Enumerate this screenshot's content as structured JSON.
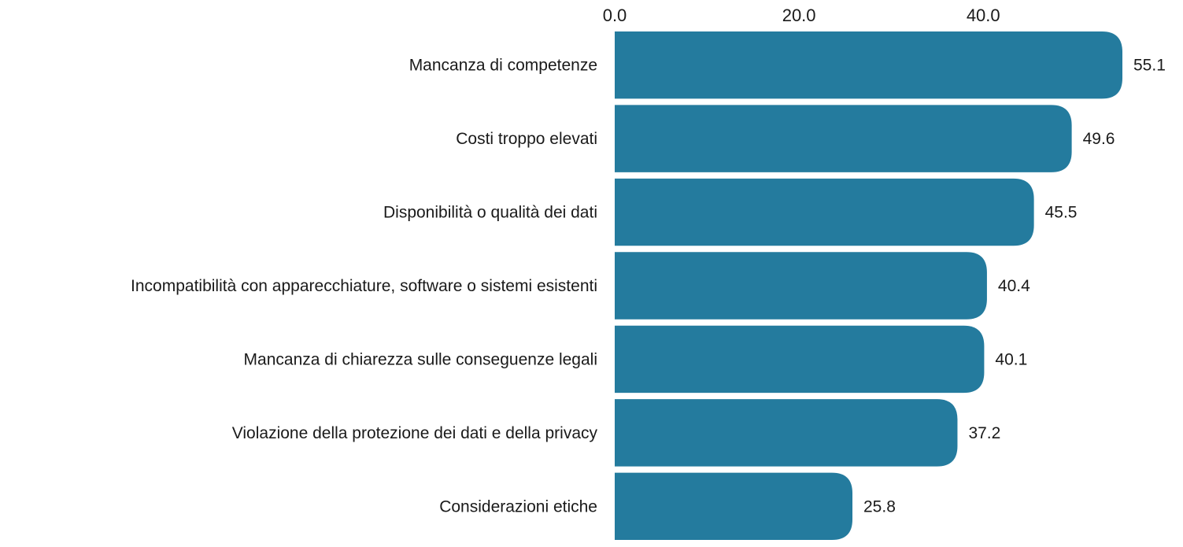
{
  "chart_data": {
    "type": "bar",
    "orientation": "horizontal",
    "categories": [
      "Mancanza di competenze",
      "Costi troppo elevati",
      "Disponibilità o qualità dei dati",
      "Incompatibilità con apparecchiature, software o sistemi esistenti",
      "Mancanza di chiarezza sulle conseguenze legali",
      "Violazione della protezione dei dati e della privacy",
      "Considerazioni etiche"
    ],
    "values": [
      55.1,
      49.6,
      45.5,
      40.4,
      40.1,
      37.2,
      25.8
    ],
    "value_labels": [
      "55.1",
      "49.6",
      "45.5",
      "40.4",
      "40.1",
      "37.2",
      "25.8"
    ],
    "x_ticks": [
      0,
      20,
      40
    ],
    "x_tick_labels": [
      "0.0",
      "20.0",
      "40.0"
    ],
    "xlim": [
      0,
      55.1
    ],
    "axis_position": "top",
    "grid": false,
    "legend": "none",
    "bar_color": "#247b9e"
  }
}
